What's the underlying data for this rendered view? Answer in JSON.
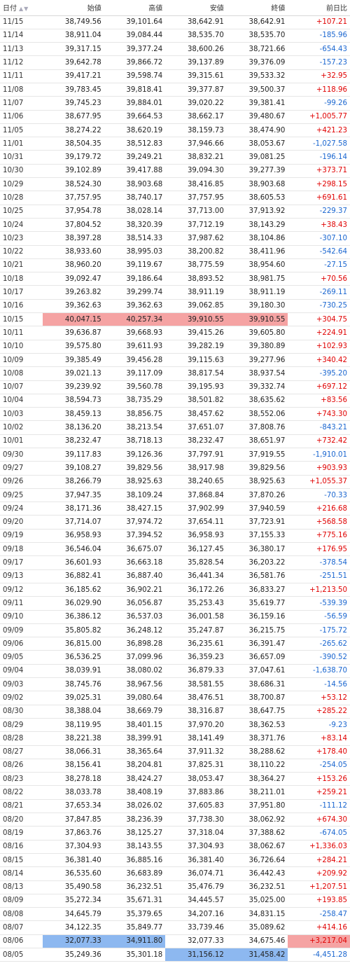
{
  "headers": {
    "date": "日付",
    "open": "始値",
    "high": "高値",
    "low": "安値",
    "close": "終値",
    "change": "前日比"
  },
  "sort_icons": "▲▼",
  "colors": {
    "positive": "#e00000",
    "negative": "#1a66d0",
    "highlight_high": "#f5a3a3",
    "highlight_low": "#8db8f0"
  },
  "rows": [
    {
      "date": "11/15",
      "open": "38,749.56",
      "high": "39,101.64",
      "low": "38,642.91",
      "close": "38,642.91",
      "change": "+107.21"
    },
    {
      "date": "11/14",
      "open": "38,911.04",
      "high": "39,084.44",
      "low": "38,535.70",
      "close": "38,535.70",
      "change": "-185.96"
    },
    {
      "date": "11/13",
      "open": "39,317.15",
      "high": "39,377.24",
      "low": "38,600.26",
      "close": "38,721.66",
      "change": "-654.43"
    },
    {
      "date": "11/12",
      "open": "39,642.78",
      "high": "39,866.72",
      "low": "39,137.89",
      "close": "39,376.09",
      "change": "-157.23"
    },
    {
      "date": "11/11",
      "open": "39,417.21",
      "high": "39,598.74",
      "low": "39,315.61",
      "close": "39,533.32",
      "change": "+32.95"
    },
    {
      "date": "11/08",
      "open": "39,783.45",
      "high": "39,818.41",
      "low": "39,377.87",
      "close": "39,500.37",
      "change": "+118.96"
    },
    {
      "date": "11/07",
      "open": "39,745.23",
      "high": "39,884.01",
      "low": "39,020.22",
      "close": "39,381.41",
      "change": "-99.26"
    },
    {
      "date": "11/06",
      "open": "38,677.95",
      "high": "39,664.53",
      "low": "38,662.17",
      "close": "39,480.67",
      "change": "+1,005.77"
    },
    {
      "date": "11/05",
      "open": "38,274.22",
      "high": "38,620.19",
      "low": "38,159.73",
      "close": "38,474.90",
      "change": "+421.23"
    },
    {
      "date": "11/01",
      "open": "38,504.35",
      "high": "38,512.83",
      "low": "37,946.66",
      "close": "38,053.67",
      "change": "-1,027.58"
    },
    {
      "date": "10/31",
      "open": "39,179.72",
      "high": "39,249.21",
      "low": "38,832.21",
      "close": "39,081.25",
      "change": "-196.14"
    },
    {
      "date": "10/30",
      "open": "39,102.89",
      "high": "39,417.88",
      "low": "39,094.30",
      "close": "39,277.39",
      "change": "+373.71"
    },
    {
      "date": "10/29",
      "open": "38,524.30",
      "high": "38,903.68",
      "low": "38,416.85",
      "close": "38,903.68",
      "change": "+298.15"
    },
    {
      "date": "10/28",
      "open": "37,757.95",
      "high": "38,740.17",
      "low": "37,757.95",
      "close": "38,605.53",
      "change": "+691.61"
    },
    {
      "date": "10/25",
      "open": "37,954.78",
      "high": "38,028.14",
      "low": "37,713.00",
      "close": "37,913.92",
      "change": "-229.37"
    },
    {
      "date": "10/24",
      "open": "37,804.52",
      "high": "38,320.39",
      "low": "37,712.19",
      "close": "38,143.29",
      "change": "+38.43"
    },
    {
      "date": "10/23",
      "open": "38,397.28",
      "high": "38,514.33",
      "low": "37,987.62",
      "close": "38,104.86",
      "change": "-307.10"
    },
    {
      "date": "10/22",
      "open": "38,933.60",
      "high": "38,995.03",
      "low": "38,200.82",
      "close": "38,411.96",
      "change": "-542.64"
    },
    {
      "date": "10/21",
      "open": "38,960.20",
      "high": "39,119.67",
      "low": "38,775.59",
      "close": "38,954.60",
      "change": "-27.15"
    },
    {
      "date": "10/18",
      "open": "39,092.47",
      "high": "39,186.64",
      "low": "38,893.52",
      "close": "38,981.75",
      "change": "+70.56"
    },
    {
      "date": "10/17",
      "open": "39,263.82",
      "high": "39,299.74",
      "low": "38,911.19",
      "close": "38,911.19",
      "change": "-269.11"
    },
    {
      "date": "10/16",
      "open": "39,362.63",
      "high": "39,362.63",
      "low": "39,062.85",
      "close": "39,180.30",
      "change": "-730.25"
    },
    {
      "date": "10/15",
      "open": "40,047.15",
      "high": "40,257.34",
      "low": "39,910.55",
      "close": "39,910.55",
      "change": "+304.75"
    },
    {
      "date": "10/11",
      "open": "39,636.87",
      "high": "39,668.93",
      "low": "39,415.26",
      "close": "39,605.80",
      "change": "+224.91"
    },
    {
      "date": "10/10",
      "open": "39,575.80",
      "high": "39,611.93",
      "low": "39,282.19",
      "close": "39,380.89",
      "change": "+102.93"
    },
    {
      "date": "10/09",
      "open": "39,385.49",
      "high": "39,456.28",
      "low": "39,115.63",
      "close": "39,277.96",
      "change": "+340.42"
    },
    {
      "date": "10/08",
      "open": "39,021.13",
      "high": "39,117.09",
      "low": "38,817.54",
      "close": "38,937.54",
      "change": "-395.20"
    },
    {
      "date": "10/07",
      "open": "39,239.92",
      "high": "39,560.78",
      "low": "39,195.93",
      "close": "39,332.74",
      "change": "+697.12"
    },
    {
      "date": "10/04",
      "open": "38,594.73",
      "high": "38,735.29",
      "low": "38,501.82",
      "close": "38,635.62",
      "change": "+83.56"
    },
    {
      "date": "10/03",
      "open": "38,459.13",
      "high": "38,856.75",
      "low": "38,457.62",
      "close": "38,552.06",
      "change": "+743.30"
    },
    {
      "date": "10/02",
      "open": "38,136.20",
      "high": "38,213.54",
      "low": "37,651.07",
      "close": "37,808.76",
      "change": "-843.21"
    },
    {
      "date": "10/01",
      "open": "38,232.47",
      "high": "38,718.13",
      "low": "38,232.47",
      "close": "38,651.97",
      "change": "+732.42"
    },
    {
      "date": "09/30",
      "open": "39,117.83",
      "high": "39,126.36",
      "low": "37,797.91",
      "close": "37,919.55",
      "change": "-1,910.01"
    },
    {
      "date": "09/27",
      "open": "39,108.27",
      "high": "39,829.56",
      "low": "38,917.98",
      "close": "39,829.56",
      "change": "+903.93"
    },
    {
      "date": "09/26",
      "open": "38,266.79",
      "high": "38,925.63",
      "low": "38,240.65",
      "close": "38,925.63",
      "change": "+1,055.37"
    },
    {
      "date": "09/25",
      "open": "37,947.35",
      "high": "38,109.24",
      "low": "37,868.84",
      "close": "37,870.26",
      "change": "-70.33"
    },
    {
      "date": "09/24",
      "open": "38,171.36",
      "high": "38,427.15",
      "low": "37,902.99",
      "close": "37,940.59",
      "change": "+216.68"
    },
    {
      "date": "09/20",
      "open": "37,714.07",
      "high": "37,974.72",
      "low": "37,654.11",
      "close": "37,723.91",
      "change": "+568.58"
    },
    {
      "date": "09/19",
      "open": "36,958.93",
      "high": "37,394.52",
      "low": "36,958.93",
      "close": "37,155.33",
      "change": "+775.16"
    },
    {
      "date": "09/18",
      "open": "36,546.04",
      "high": "36,675.07",
      "low": "36,127.45",
      "close": "36,380.17",
      "change": "+176.95"
    },
    {
      "date": "09/17",
      "open": "36,601.93",
      "high": "36,663.18",
      "low": "35,828.54",
      "close": "36,203.22",
      "change": "-378.54"
    },
    {
      "date": "09/13",
      "open": "36,882.41",
      "high": "36,887.40",
      "low": "36,441.34",
      "close": "36,581.76",
      "change": "-251.51"
    },
    {
      "date": "09/12",
      "open": "36,185.62",
      "high": "36,902.21",
      "low": "36,172.26",
      "close": "36,833.27",
      "change": "+1,213.50"
    },
    {
      "date": "09/11",
      "open": "36,029.90",
      "high": "36,056.87",
      "low": "35,253.43",
      "close": "35,619.77",
      "change": "-539.39"
    },
    {
      "date": "09/10",
      "open": "36,386.12",
      "high": "36,537.03",
      "low": "36,001.58",
      "close": "36,159.16",
      "change": "-56.59"
    },
    {
      "date": "09/09",
      "open": "35,805.82",
      "high": "36,248.12",
      "low": "35,247.87",
      "close": "36,215.75",
      "change": "-175.72"
    },
    {
      "date": "09/06",
      "open": "36,815.00",
      "high": "36,898.28",
      "low": "36,235.61",
      "close": "36,391.47",
      "change": "-265.62"
    },
    {
      "date": "09/05",
      "open": "36,536.25",
      "high": "37,099.96",
      "low": "36,359.23",
      "close": "36,657.09",
      "change": "-390.52"
    },
    {
      "date": "09/04",
      "open": "38,039.91",
      "high": "38,080.02",
      "low": "36,879.33",
      "close": "37,047.61",
      "change": "-1,638.70"
    },
    {
      "date": "09/03",
      "open": "38,745.76",
      "high": "38,967.56",
      "low": "38,581.55",
      "close": "38,686.31",
      "change": "-14.56"
    },
    {
      "date": "09/02",
      "open": "39,025.31",
      "high": "39,080.64",
      "low": "38,476.51",
      "close": "38,700.87",
      "change": "+53.12"
    },
    {
      "date": "08/30",
      "open": "38,388.04",
      "high": "38,669.79",
      "low": "38,316.87",
      "close": "38,647.75",
      "change": "+285.22"
    },
    {
      "date": "08/29",
      "open": "38,119.95",
      "high": "38,401.15",
      "low": "37,970.20",
      "close": "38,362.53",
      "change": "-9.23"
    },
    {
      "date": "08/28",
      "open": "38,221.38",
      "high": "38,399.91",
      "low": "38,141.49",
      "close": "38,371.76",
      "change": "+83.14"
    },
    {
      "date": "08/27",
      "open": "38,066.31",
      "high": "38,365.64",
      "low": "37,911.32",
      "close": "38,288.62",
      "change": "+178.40"
    },
    {
      "date": "08/26",
      "open": "38,156.41",
      "high": "38,204.81",
      "low": "37,825.31",
      "close": "38,110.22",
      "change": "-254.05"
    },
    {
      "date": "08/23",
      "open": "38,278.18",
      "high": "38,424.27",
      "low": "38,053.47",
      "close": "38,364.27",
      "change": "+153.26"
    },
    {
      "date": "08/22",
      "open": "38,033.78",
      "high": "38,408.19",
      "low": "37,883.86",
      "close": "38,211.01",
      "change": "+259.21"
    },
    {
      "date": "08/21",
      "open": "37,653.34",
      "high": "38,026.02",
      "low": "37,605.83",
      "close": "37,951.80",
      "change": "-111.12"
    },
    {
      "date": "08/20",
      "open": "37,847.85",
      "high": "38,236.39",
      "low": "37,738.30",
      "close": "38,062.92",
      "change": "+674.30"
    },
    {
      "date": "08/19",
      "open": "37,863.76",
      "high": "38,125.27",
      "low": "37,318.04",
      "close": "37,388.62",
      "change": "-674.05"
    },
    {
      "date": "08/16",
      "open": "37,304.93",
      "high": "38,143.55",
      "low": "37,304.93",
      "close": "38,062.67",
      "change": "+1,336.03"
    },
    {
      "date": "08/15",
      "open": "36,381.40",
      "high": "36,885.16",
      "low": "36,381.40",
      "close": "36,726.64",
      "change": "+284.21"
    },
    {
      "date": "08/14",
      "open": "36,535.60",
      "high": "36,683.89",
      "low": "36,074.71",
      "close": "36,442.43",
      "change": "+209.92"
    },
    {
      "date": "08/13",
      "open": "35,490.58",
      "high": "36,232.51",
      "low": "35,476.79",
      "close": "36,232.51",
      "change": "+1,207.51"
    },
    {
      "date": "08/09",
      "open": "35,272.34",
      "high": "35,671.31",
      "low": "34,445.57",
      "close": "35,025.00",
      "change": "+193.85"
    },
    {
      "date": "08/08",
      "open": "34,645.79",
      "high": "35,379.65",
      "low": "34,207.16",
      "close": "34,831.15",
      "change": "-258.47"
    },
    {
      "date": "08/07",
      "open": "34,122.35",
      "high": "35,849.77",
      "low": "33,739.46",
      "close": "35,089.62",
      "change": "+414.16"
    },
    {
      "date": "08/06",
      "open": "32,077.33",
      "high": "34,911.80",
      "low": "32,077.33",
      "close": "34,675.46",
      "change": "+3,217.04"
    },
    {
      "date": "08/05",
      "open": "35,249.36",
      "high": "35,301.18",
      "low": "31,156.12",
      "close": "31,458.42",
      "change": "-4,451.28"
    }
  ]
}
